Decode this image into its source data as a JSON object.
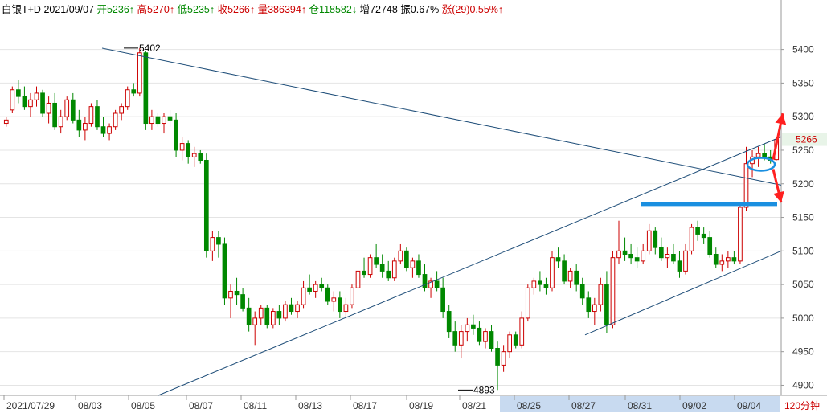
{
  "header": {
    "instrument": "白银T+D",
    "date": "2021/09/07",
    "items": [
      {
        "text": "开5236↑",
        "color": "#008800"
      },
      {
        "text": "高5270↑",
        "color": "#cc0000"
      },
      {
        "text": "低5235↑",
        "color": "#008800"
      },
      {
        "text": "收5266↑",
        "color": "#cc0000"
      },
      {
        "text": "量386394↑",
        "color": "#cc0000"
      },
      {
        "text": "仓118582↓",
        "color": "#008800"
      },
      {
        "text": "增72748",
        "color": "#000000"
      },
      {
        "text": "振0.67%",
        "color": "#000000"
      },
      {
        "text": "涨(29)0.55%↑",
        "color": "#cc0000"
      }
    ]
  },
  "period_label": "120分钟",
  "colors": {
    "up": "#cc0000",
    "down": "#008800",
    "trendline": "#1f4e79",
    "support": "#1a8fe0",
    "arrow": "#ff2020",
    "price_tag_bg": "#e8f4e8",
    "x_axis_highlight": "#c8daf0"
  },
  "chart_data": {
    "type": "candlestick",
    "ylim": [
      4885,
      5445
    ],
    "y_ticks": [
      4900,
      4950,
      5000,
      5050,
      5100,
      5150,
      5200,
      5250,
      5300,
      5350,
      5400
    ],
    "x_tick_labels": [
      "2021/07/29",
      "08/03",
      "08/05",
      "08/07",
      "08/11",
      "08/13",
      "08/17",
      "08/19",
      "08/21",
      "08/25",
      "08/27",
      "08/31",
      "09/02",
      "09/04"
    ],
    "last_price": 5266,
    "annotations": [
      {
        "text": "5402",
        "value": 5402,
        "kind": "high"
      },
      {
        "text": "4893",
        "value": 4893,
        "kind": "low"
      }
    ],
    "key_level": 5170,
    "candles": [
      [
        5290,
        5300,
        5285,
        5295
      ],
      [
        5310,
        5345,
        5305,
        5340
      ],
      [
        5340,
        5355,
        5320,
        5330
      ],
      [
        5330,
        5345,
        5310,
        5315
      ],
      [
        5315,
        5335,
        5300,
        5325
      ],
      [
        5325,
        5345,
        5315,
        5335
      ],
      [
        5335,
        5340,
        5300,
        5305
      ],
      [
        5305,
        5330,
        5290,
        5320
      ],
      [
        5320,
        5335,
        5280,
        5285
      ],
      [
        5285,
        5310,
        5275,
        5300
      ],
      [
        5300,
        5330,
        5295,
        5325
      ],
      [
        5325,
        5335,
        5290,
        5295
      ],
      [
        5295,
        5310,
        5270,
        5280
      ],
      [
        5280,
        5300,
        5265,
        5290
      ],
      [
        5290,
        5320,
        5285,
        5315
      ],
      [
        5315,
        5325,
        5280,
        5285
      ],
      [
        5285,
        5300,
        5270,
        5275
      ],
      [
        5275,
        5290,
        5265,
        5285
      ],
      [
        5285,
        5310,
        5280,
        5305
      ],
      [
        5305,
        5320,
        5295,
        5315
      ],
      [
        5315,
        5345,
        5310,
        5340
      ],
      [
        5340,
        5350,
        5330,
        5335
      ],
      [
        5335,
        5402,
        5330,
        5395
      ],
      [
        5395,
        5398,
        5280,
        5290
      ],
      [
        5290,
        5310,
        5280,
        5300
      ],
      [
        5300,
        5305,
        5285,
        5290
      ],
      [
        5290,
        5305,
        5275,
        5300
      ],
      [
        5300,
        5310,
        5285,
        5295
      ],
      [
        5295,
        5305,
        5240,
        5250
      ],
      [
        5250,
        5270,
        5235,
        5260
      ],
      [
        5260,
        5265,
        5230,
        5240
      ],
      [
        5240,
        5255,
        5225,
        5245
      ],
      [
        5245,
        5250,
        5230,
        5235
      ],
      [
        5235,
        5245,
        5090,
        5100
      ],
      [
        5100,
        5130,
        5085,
        5120
      ],
      [
        5120,
        5130,
        5090,
        5110
      ],
      [
        5110,
        5120,
        5020,
        5030
      ],
      [
        5030,
        5050,
        5000,
        5040
      ],
      [
        5040,
        5060,
        5020,
        5035
      ],
      [
        5035,
        5045,
        5010,
        5015
      ],
      [
        5015,
        5030,
        4980,
        4990
      ],
      [
        4990,
        5010,
        4960,
        5000
      ],
      [
        5000,
        5020,
        4990,
        5015
      ],
      [
        5015,
        5020,
        4985,
        4990
      ],
      [
        4990,
        5015,
        4985,
        5010
      ],
      [
        5010,
        5020,
        4990,
        5000
      ],
      [
        5000,
        5025,
        4995,
        5020
      ],
      [
        5020,
        5030,
        5005,
        5010
      ],
      [
        5010,
        5025,
        5000,
        5020
      ],
      [
        5020,
        5055,
        5015,
        5045
      ],
      [
        5045,
        5065,
        5035,
        5040
      ],
      [
        5040,
        5055,
        5030,
        5050
      ],
      [
        5050,
        5060,
        5040,
        5045
      ],
      [
        5045,
        5050,
        5020,
        5025
      ],
      [
        5025,
        5040,
        5010,
        5030
      ],
      [
        5030,
        5040,
        5000,
        5010
      ],
      [
        5010,
        5030,
        5000,
        5020
      ],
      [
        5020,
        5050,
        5015,
        5045
      ],
      [
        5045,
        5075,
        5040,
        5070
      ],
      [
        5070,
        5090,
        5060,
        5065
      ],
      [
        5065,
        5095,
        5060,
        5090
      ],
      [
        5090,
        5110,
        5075,
        5080
      ],
      [
        5080,
        5095,
        5060,
        5070
      ],
      [
        5070,
        5085,
        5055,
        5060
      ],
      [
        5060,
        5090,
        5055,
        5085
      ],
      [
        5085,
        5110,
        5080,
        5100
      ],
      [
        5100,
        5105,
        5070,
        5075
      ],
      [
        5075,
        5090,
        5060,
        5085
      ],
      [
        5085,
        5095,
        5060,
        5065
      ],
      [
        5065,
        5080,
        5040,
        5045
      ],
      [
        5045,
        5060,
        5030,
        5055
      ],
      [
        5055,
        5070,
        5040,
        5045
      ],
      [
        5045,
        5060,
        5000,
        5010
      ],
      [
        5010,
        5020,
        4970,
        4980
      ],
      [
        4980,
        4995,
        4950,
        4960
      ],
      [
        4960,
        4990,
        4940,
        4980
      ],
      [
        4980,
        5000,
        4965,
        4990
      ],
      [
        4990,
        5005,
        4975,
        4985
      ],
      [
        4985,
        4995,
        4960,
        4965
      ],
      [
        4965,
        4985,
        4955,
        4980
      ],
      [
        4980,
        4990,
        4950,
        4955
      ],
      [
        4955,
        4965,
        4893,
        4930
      ],
      [
        4930,
        4960,
        4920,
        4950
      ],
      [
        4950,
        4980,
        4940,
        4975
      ],
      [
        4975,
        4980,
        4955,
        4960
      ],
      [
        4960,
        5010,
        4955,
        5000
      ],
      [
        5000,
        5050,
        4995,
        5045
      ],
      [
        5045,
        5060,
        5035,
        5055
      ],
      [
        5055,
        5070,
        5040,
        5050
      ],
      [
        5050,
        5060,
        5035,
        5045
      ],
      [
        5045,
        5100,
        5040,
        5090
      ],
      [
        5090,
        5105,
        5075,
        5085
      ],
      [
        5085,
        5095,
        5050,
        5055
      ],
      [
        5055,
        5075,
        5045,
        5070
      ],
      [
        5070,
        5080,
        5040,
        5050
      ],
      [
        5050,
        5060,
        5020,
        5030
      ],
      [
        5030,
        5040,
        5000,
        5010
      ],
      [
        5010,
        5030,
        4990,
        5020
      ],
      [
        5020,
        5060,
        5010,
        5050
      ],
      [
        5050,
        5070,
        4978,
        4990
      ],
      [
        4990,
        5100,
        4985,
        5090
      ],
      [
        5090,
        5145,
        5080,
        5100
      ],
      [
        5100,
        5120,
        5085,
        5095
      ],
      [
        5095,
        5110,
        5080,
        5090
      ],
      [
        5090,
        5105,
        5075,
        5085
      ],
      [
        5085,
        5110,
        5080,
        5100
      ],
      [
        5100,
        5140,
        5095,
        5130
      ],
      [
        5130,
        5135,
        5095,
        5105
      ],
      [
        5105,
        5120,
        5085,
        5090
      ],
      [
        5090,
        5105,
        5075,
        5095
      ],
      [
        5095,
        5110,
        5080,
        5085
      ],
      [
        5085,
        5100,
        5060,
        5070
      ],
      [
        5070,
        5110,
        5065,
        5100
      ],
      [
        5100,
        5140,
        5095,
        5135
      ],
      [
        5135,
        5145,
        5115,
        5125
      ],
      [
        5125,
        5135,
        5110,
        5120
      ],
      [
        5120,
        5130,
        5090,
        5095
      ],
      [
        5095,
        5105,
        5075,
        5080
      ],
      [
        5080,
        5095,
        5070,
        5085
      ],
      [
        5085,
        5100,
        5075,
        5090
      ],
      [
        5090,
        5100,
        5080,
        5085
      ],
      [
        5085,
        5170,
        5080,
        5165
      ],
      [
        5165,
        5255,
        5160,
        5230
      ],
      [
        5230,
        5250,
        5210,
        5240
      ],
      [
        5240,
        5255,
        5225,
        5245
      ],
      [
        5245,
        5260,
        5235,
        5240
      ],
      [
        5240,
        5250,
        5230,
        5235
      ],
      [
        5236,
        5270,
        5235,
        5266
      ]
    ]
  }
}
